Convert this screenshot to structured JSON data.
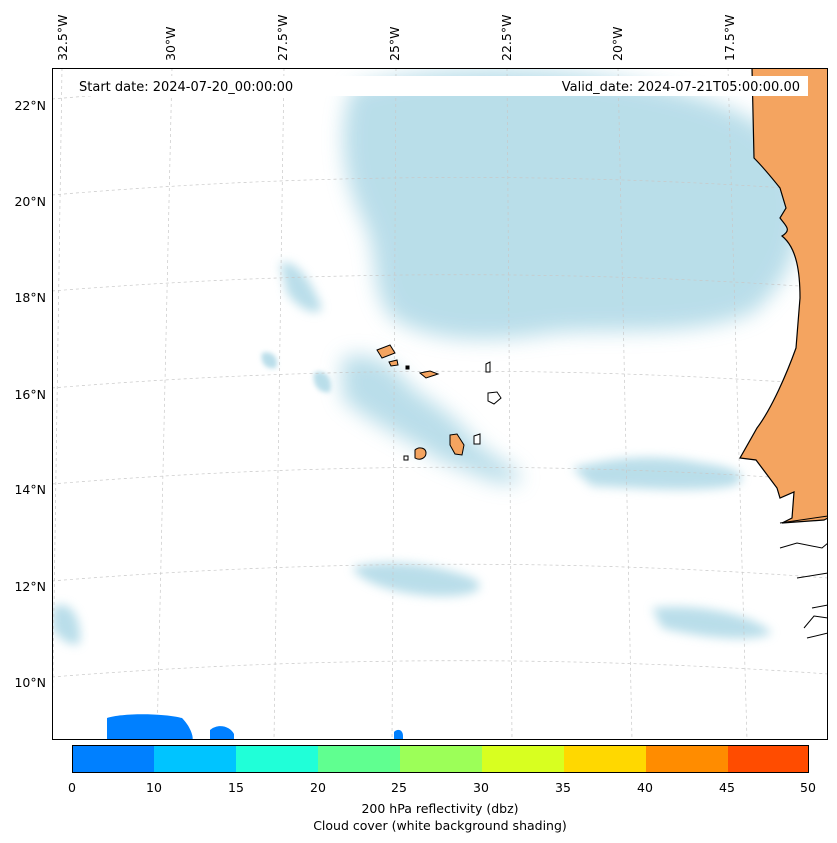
{
  "map": {
    "start_label": "Start date: 2024-07-20_00:00:00",
    "valid_label": "Valid_date: 2024-07-21T05:00:00.00",
    "lon_labels": [
      "32.5°W",
      "30°W",
      "27.5°W",
      "25°W",
      "22.5°W",
      "20°W",
      "17.5°W"
    ],
    "lat_labels": [
      "22°N",
      "20°N",
      "18°N",
      "16°N",
      "14°N",
      "12°N",
      "10°N"
    ],
    "cloud_color": "#add8e6",
    "land_color": "#f4a460",
    "reflectivity_color": "#0080ff"
  },
  "colorbar": {
    "ticks": [
      "0",
      "10",
      "15",
      "20",
      "25",
      "30",
      "35",
      "40",
      "45",
      "50"
    ],
    "colors": [
      "#0080ff",
      "#00c4ff",
      "#20ffd8",
      "#60ff90",
      "#9cff58",
      "#d8ff20",
      "#ffd800",
      "#ff8c00",
      "#ff4c00"
    ],
    "label_line1": "200 hPa reflectivity (dbz)",
    "label_line2": "Cloud cover (white background shading)"
  }
}
